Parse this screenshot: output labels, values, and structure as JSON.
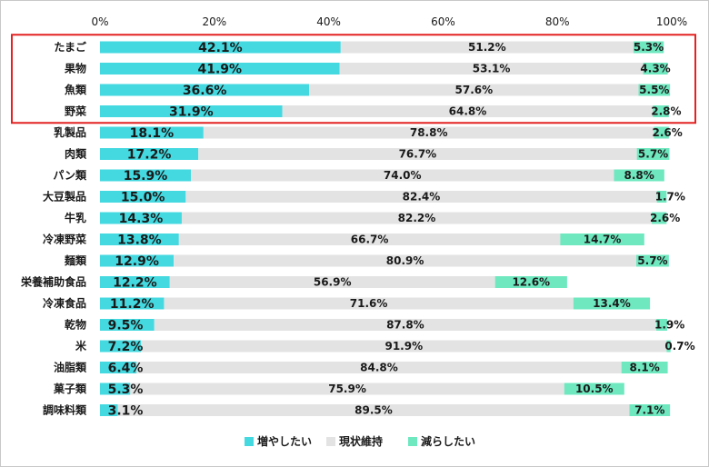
{
  "chart_data": {
    "type": "bar",
    "stacked": "percent",
    "orientation": "horizontal",
    "title": "",
    "xlabel": "",
    "ylabel": "",
    "xlim": [
      0,
      100
    ],
    "x_tick_labels": [
      "0%",
      "20%",
      "40%",
      "60%",
      "80%",
      "100%"
    ],
    "categories": [
      "たまご",
      "果物",
      "魚類",
      "野菜",
      "乳製品",
      "肉類",
      "パン類",
      "大豆製品",
      "牛乳",
      "冷凍野菜",
      "麺類",
      "栄養補助食品",
      "冷凍食品",
      "乾物",
      "米",
      "油脂類",
      "菓子類",
      "調味料類"
    ],
    "series": [
      {
        "name": "増やしたい",
        "color": "#44d9e0",
        "values": [
          42.1,
          41.9,
          36.6,
          31.9,
          18.1,
          17.2,
          15.9,
          15.0,
          14.3,
          13.8,
          12.9,
          12.2,
          11.2,
          9.5,
          7.2,
          6.4,
          5.3,
          3.1
        ]
      },
      {
        "name": "現状維持",
        "color": "#e3e3e3",
        "values": [
          51.2,
          53.1,
          57.6,
          64.8,
          78.8,
          76.7,
          74.0,
          82.4,
          82.2,
          66.7,
          80.9,
          56.9,
          71.6,
          87.8,
          91.9,
          84.8,
          75.9,
          89.5
        ]
      },
      {
        "name": "減らしたい",
        "color": "#6fe8c0",
        "values": [
          5.3,
          4.3,
          5.5,
          2.8,
          2.6,
          5.7,
          8.8,
          1.7,
          2.6,
          14.7,
          5.7,
          12.6,
          13.4,
          1.9,
          0.7,
          8.1,
          10.5,
          7.1
        ]
      }
    ],
    "data_labels": {
      "increase": [
        "42.1%",
        "41.9%",
        "36.6%",
        "31.9%",
        "18.1%",
        "17.2%",
        "15.9%",
        "15.0%",
        "14.3%",
        "13.8%",
        "12.9%",
        "12.2%",
        "11.2%",
        "9.5%",
        "7.2%",
        "6.4%",
        "5.3%",
        "3.1%"
      ],
      "maintain": [
        "51.2%",
        "53.1%",
        "57.6%",
        "64.8%",
        "78.8%",
        "76.7%",
        "74.0%",
        "82.4%",
        "82.2%",
        "66.7%",
        "80.9%",
        "56.9%",
        "71.6%",
        "87.8%",
        "91.9%",
        "84.8%",
        "75.9%",
        "89.5%"
      ],
      "decrease": [
        "5.3%",
        "4.3%",
        "5.5%",
        "2.8%",
        "2.6%",
        "5.7%",
        "8.8%",
        "1.7%",
        "2.6%",
        "14.7%",
        "5.7%",
        "12.6%",
        "13.4%",
        "1.9%",
        "0.7%",
        "8.1%",
        "10.5%",
        "7.1%"
      ]
    },
    "highlight": {
      "rows": [
        0,
        1,
        2,
        3
      ],
      "color": "#e32222"
    },
    "legend": {
      "position": "bottom",
      "entries": [
        "増やしたい",
        "現状維持",
        "減らしたい"
      ]
    }
  }
}
